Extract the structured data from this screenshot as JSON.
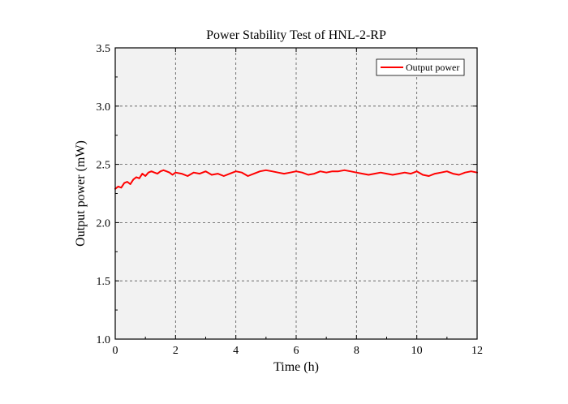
{
  "chart_data": {
    "type": "line",
    "title": "Power Stability Test of HNL-2-RP",
    "xlabel": "Time (h)",
    "ylabel": "Output power (mW)",
    "xlim": [
      0,
      12
    ],
    "ylim": [
      1.0,
      3.5
    ],
    "xticks": [
      0,
      2,
      4,
      6,
      8,
      10,
      12
    ],
    "yticks": [
      1.0,
      1.5,
      2.0,
      2.5,
      3.0,
      3.5
    ],
    "xtick_labels": [
      "0",
      "2",
      "4",
      "6",
      "8",
      "10",
      "12"
    ],
    "ytick_labels": [
      "1.0",
      "1.5",
      "2.0",
      "2.5",
      "3.0",
      "3.5"
    ],
    "grid": true,
    "legend_position": "top-right",
    "series": [
      {
        "name": "Output power",
        "color": "#ff0000",
        "x": [
          0,
          0.1,
          0.2,
          0.3,
          0.4,
          0.5,
          0.6,
          0.7,
          0.8,
          0.9,
          1.0,
          1.1,
          1.2,
          1.3,
          1.4,
          1.5,
          1.6,
          1.7,
          1.8,
          1.9,
          2.0,
          2.2,
          2.4,
          2.6,
          2.8,
          3.0,
          3.2,
          3.4,
          3.6,
          3.8,
          4.0,
          4.2,
          4.4,
          4.6,
          4.8,
          5.0,
          5.2,
          5.4,
          5.6,
          5.8,
          6.0,
          6.2,
          6.4,
          6.6,
          6.8,
          7.0,
          7.2,
          7.4,
          7.6,
          7.8,
          8.0,
          8.2,
          8.4,
          8.6,
          8.8,
          9.0,
          9.2,
          9.4,
          9.6,
          9.8,
          10.0,
          10.2,
          10.4,
          10.6,
          10.8,
          11.0,
          11.2,
          11.4,
          11.6,
          11.8,
          12.0
        ],
        "values": [
          2.29,
          2.31,
          2.3,
          2.34,
          2.35,
          2.33,
          2.37,
          2.39,
          2.38,
          2.42,
          2.4,
          2.43,
          2.44,
          2.43,
          2.42,
          2.44,
          2.45,
          2.44,
          2.43,
          2.41,
          2.43,
          2.42,
          2.4,
          2.43,
          2.42,
          2.44,
          2.41,
          2.42,
          2.4,
          2.42,
          2.44,
          2.43,
          2.4,
          2.42,
          2.44,
          2.45,
          2.44,
          2.43,
          2.42,
          2.43,
          2.44,
          2.43,
          2.41,
          2.42,
          2.44,
          2.43,
          2.44,
          2.44,
          2.45,
          2.44,
          2.43,
          2.42,
          2.41,
          2.42,
          2.43,
          2.42,
          2.41,
          2.42,
          2.43,
          2.42,
          2.44,
          2.41,
          2.4,
          2.42,
          2.43,
          2.44,
          2.42,
          2.41,
          2.43,
          2.44,
          2.43
        ]
      }
    ]
  }
}
